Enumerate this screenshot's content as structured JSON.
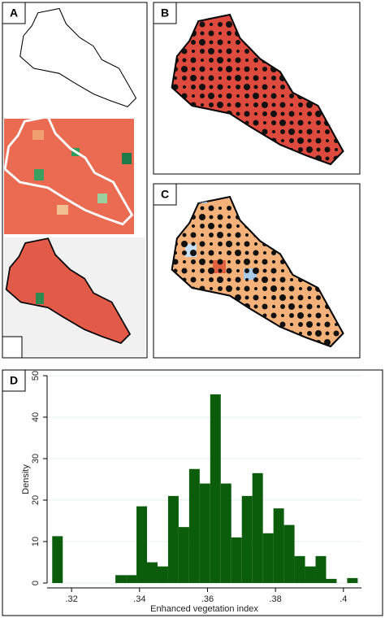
{
  "panels": {
    "a": "A",
    "b": "B",
    "c": "C",
    "d": "D"
  },
  "chart_data": {
    "type": "histogram",
    "xlabel": "Enhanced vegetation index",
    "ylabel": "Density",
    "bins": [
      0.3143,
      0.3174,
      0.3205,
      0.3236,
      0.3267,
      0.3298,
      0.3329,
      0.336,
      0.3391,
      0.3422,
      0.3453,
      0.3484,
      0.3515,
      0.3546,
      0.3577,
      0.3608,
      0.3639,
      0.367,
      0.3701,
      0.3732,
      0.3763,
      0.3794,
      0.3825,
      0.3856,
      0.3887,
      0.3918,
      0.3949,
      0.398,
      0.4011,
      0.4042
    ],
    "values": [
      11.3,
      0,
      0,
      0,
      0,
      0,
      1.9,
      1.9,
      18.5,
      5,
      4,
      21,
      13.5,
      27.5,
      24,
      45.5,
      24,
      11,
      21,
      26.5,
      12,
      18,
      14,
      6.5,
      4,
      6.5,
      1,
      0,
      1.2
    ],
    "color": "#0b5d0b",
    "xlim": [
      0.3128,
      0.4053
    ],
    "xticks": [
      {
        "value": 0.32,
        "label": ".32"
      },
      {
        "value": 0.34,
        "label": ".34"
      },
      {
        "value": 0.36,
        "label": ".36"
      },
      {
        "value": 0.38,
        "label": ".38"
      },
      {
        "value": 0.4,
        "label": ".4"
      }
    ],
    "ylim": [
      0,
      50
    ],
    "yticks": [
      0,
      10,
      20,
      30,
      40,
      50
    ],
    "grid": true
  }
}
